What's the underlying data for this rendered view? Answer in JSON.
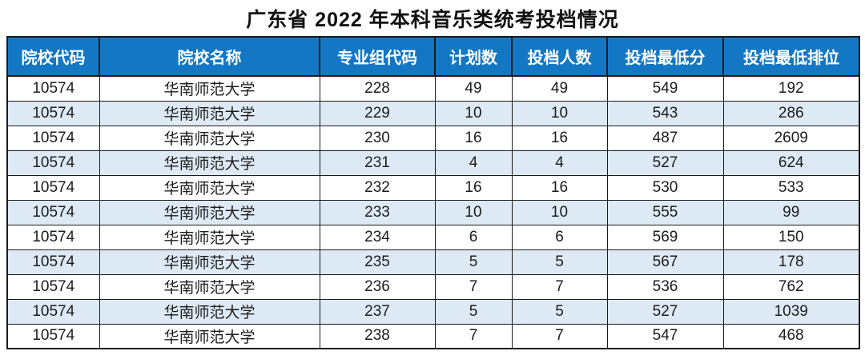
{
  "title": "广东省 2022 年本科音乐类统考投档情况",
  "colors": {
    "header_bg": "#1377c4",
    "header_text": "#ffffff",
    "row_bg": "#ffffff",
    "row_alt_bg": "#dde9f4",
    "border": "#1b1b1b",
    "body_text": "#1c1c1c"
  },
  "chart_data": {
    "type": "table",
    "title": "广东省 2022 年本科音乐类统考投档情况",
    "columns": [
      "院校代码",
      "院校名称",
      "专业组代码",
      "计划数",
      "投档人数",
      "投档最低分",
      "投档最低排位"
    ],
    "rows": [
      [
        "10574",
        "华南师范大学",
        "228",
        "49",
        "49",
        "549",
        "192"
      ],
      [
        "10574",
        "华南师范大学",
        "229",
        "10",
        "10",
        "543",
        "286"
      ],
      [
        "10574",
        "华南师范大学",
        "230",
        "16",
        "16",
        "487",
        "2609"
      ],
      [
        "10574",
        "华南师范大学",
        "231",
        "4",
        "4",
        "527",
        "624"
      ],
      [
        "10574",
        "华南师范大学",
        "232",
        "16",
        "16",
        "530",
        "533"
      ],
      [
        "10574",
        "华南师范大学",
        "233",
        "10",
        "10",
        "555",
        "99"
      ],
      [
        "10574",
        "华南师范大学",
        "234",
        "6",
        "6",
        "569",
        "150"
      ],
      [
        "10574",
        "华南师范大学",
        "235",
        "5",
        "5",
        "567",
        "178"
      ],
      [
        "10574",
        "华南师范大学",
        "236",
        "7",
        "7",
        "536",
        "762"
      ],
      [
        "10574",
        "华南师范大学",
        "237",
        "5",
        "5",
        "527",
        "1039"
      ],
      [
        "10574",
        "华南师范大学",
        "238",
        "7",
        "7",
        "547",
        "468"
      ]
    ]
  }
}
